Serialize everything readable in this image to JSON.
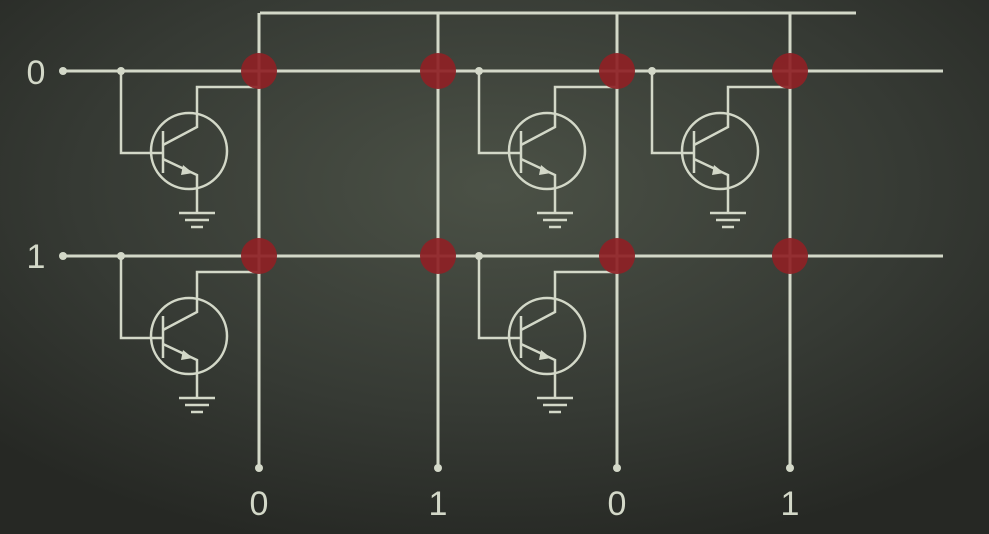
{
  "diagram": {
    "row_labels": [
      "0",
      "1"
    ],
    "column_labels": [
      "0",
      "1",
      "0",
      "1"
    ],
    "colors": {
      "background": "#2f322d",
      "wire": "#d3d8c8",
      "node": "#8e2125"
    },
    "rows": [
      {
        "label": "0",
        "cells": [
          {
            "column": "0",
            "transistor": true
          },
          {
            "column": "1",
            "transistor": false
          },
          {
            "column": "0",
            "transistor": true
          },
          {
            "column": "1",
            "transistor": true
          }
        ]
      },
      {
        "label": "1",
        "cells": [
          {
            "column": "0",
            "transistor": true
          },
          {
            "column": "1",
            "transistor": false
          },
          {
            "column": "0",
            "transistor": true
          },
          {
            "column": "1",
            "transistor": false
          }
        ]
      }
    ]
  }
}
